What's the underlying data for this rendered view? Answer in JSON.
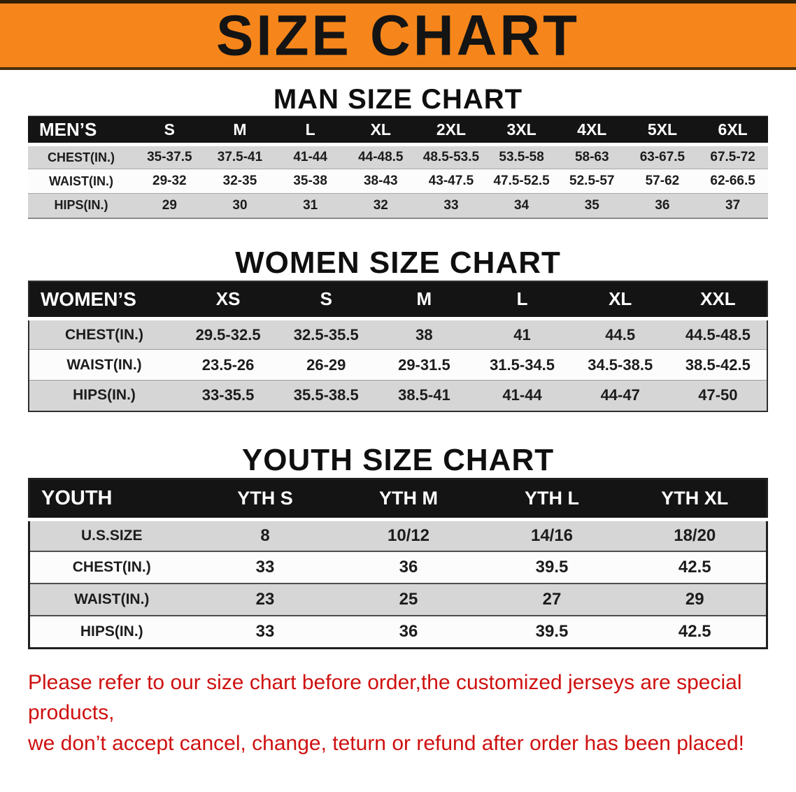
{
  "banner": {
    "title": "SIZE CHART",
    "bg_color": "#f6861b",
    "text_color": "#141414"
  },
  "sections": {
    "man": {
      "heading": "MAN SIZE CHART"
    },
    "women": {
      "heading": "WOMEN SIZE CHART"
    },
    "youth": {
      "heading": "YOUTH SIZE CHART"
    }
  },
  "tables": {
    "men": {
      "corner_label": "MEN’S",
      "columns": [
        "S",
        "M",
        "L",
        "XL",
        "2XL",
        "3XL",
        "4XL",
        "5XL",
        "6XL"
      ],
      "rows": [
        {
          "label": "CHEST(IN.)",
          "values": [
            "35-37.5",
            "37.5-41",
            "41-44",
            "44-48.5",
            "48.5-53.5",
            "53.5-58",
            "58-63",
            "63-67.5",
            "67.5-72"
          ]
        },
        {
          "label": "WAIST(IN.)",
          "values": [
            "29-32",
            "32-35",
            "35-38",
            "38-43",
            "43-47.5",
            "47.5-52.5",
            "52.5-57",
            "57-62",
            "62-66.5"
          ]
        },
        {
          "label": "HIPS(IN.)",
          "values": [
            "29",
            "30",
            "31",
            "32",
            "33",
            "34",
            "35",
            "36",
            "37"
          ]
        }
      ]
    },
    "women": {
      "corner_label": "WOMEN’S",
      "columns": [
        "XS",
        "S",
        "M",
        "L",
        "XL",
        "XXL"
      ],
      "rows": [
        {
          "label": "CHEST(IN.)",
          "values": [
            "29.5-32.5",
            "32.5-35.5",
            "38",
            "41",
            "44.5",
            "44.5-48.5"
          ]
        },
        {
          "label": "WAIST(IN.)",
          "values": [
            "23.5-26",
            "26-29",
            "29-31.5",
            "31.5-34.5",
            "34.5-38.5",
            "38.5-42.5"
          ]
        },
        {
          "label": "HIPS(IN.)",
          "values": [
            "33-35.5",
            "35.5-38.5",
            "38.5-41",
            "41-44",
            "44-47",
            "47-50"
          ]
        }
      ]
    },
    "youth": {
      "corner_label": "YOUTH",
      "columns": [
        "YTH S",
        "YTH M",
        "YTH L",
        "YTH XL"
      ],
      "rows": [
        {
          "label": "U.S.SIZE",
          "values": [
            "8",
            "10/12",
            "14/16",
            "18/20"
          ]
        },
        {
          "label": "CHEST(IN.)",
          "values": [
            "33",
            "36",
            "39.5",
            "42.5"
          ]
        },
        {
          "label": "WAIST(IN.)",
          "values": [
            "23",
            "25",
            "27",
            "29"
          ]
        },
        {
          "label": "HIPS(IN.)",
          "values": [
            "33",
            "36",
            "39.5",
            "42.5"
          ]
        }
      ]
    }
  },
  "disclaimer": {
    "line1": "Please refer to our size chart before order,the customized jerseys are special products,",
    "line2": "we don’t accept cancel, change, teturn or refund after order has been placed!",
    "color": "#cf1010"
  }
}
